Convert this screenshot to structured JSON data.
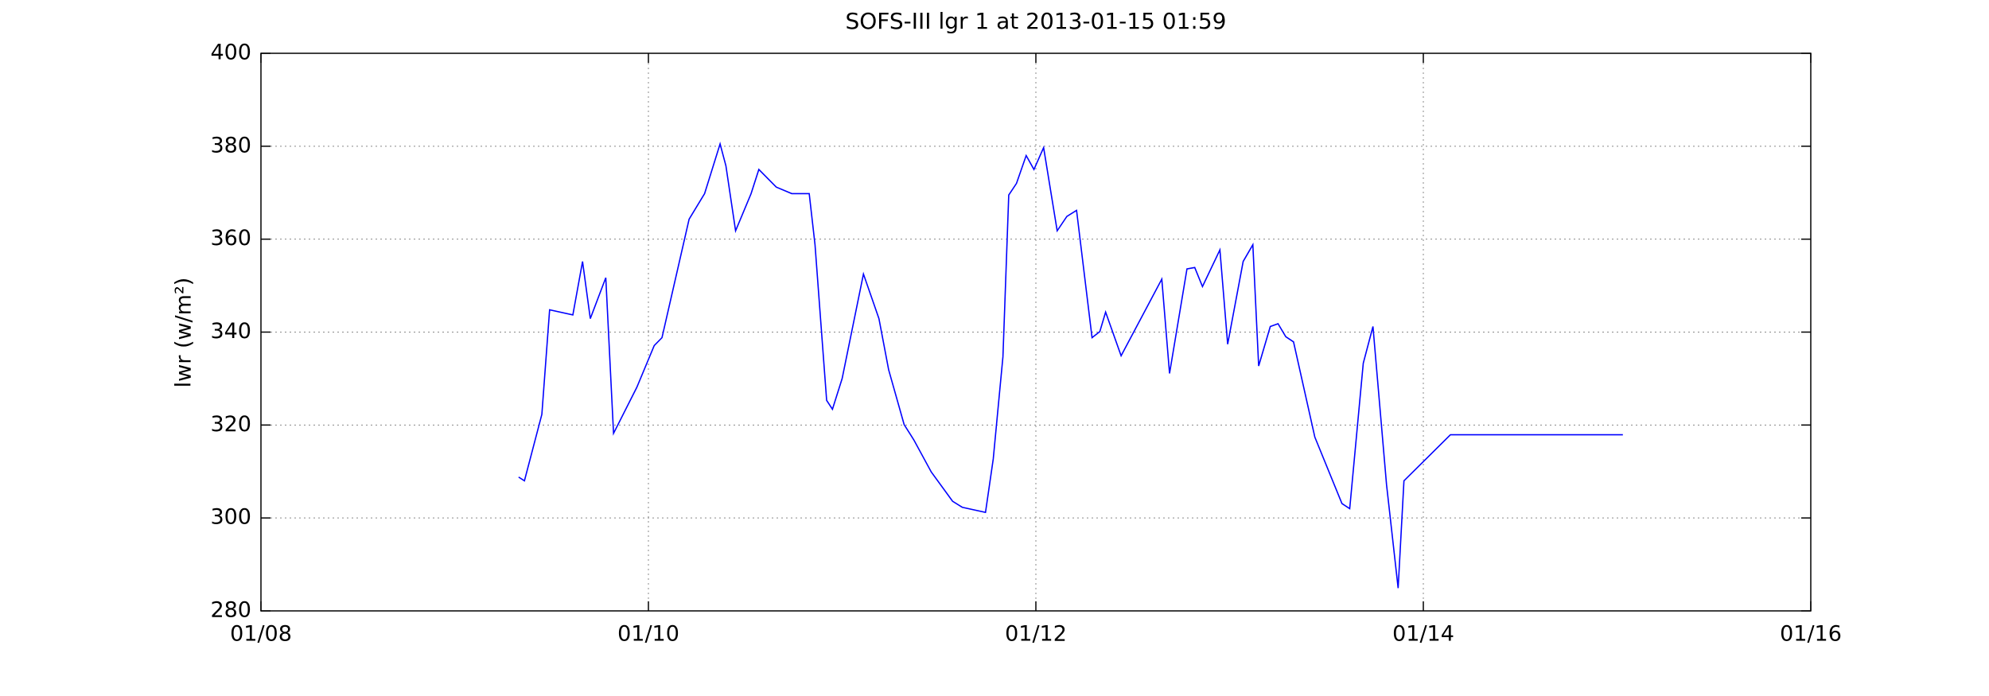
{
  "chart_data": {
    "type": "line",
    "title": "SOFS-III lgr 1 at 2013-01-15 01:59",
    "y_label": "lwr (w/m²)",
    "color": "#0000ff",
    "grid": true,
    "xlim": [
      8,
      16
    ],
    "xticks": [
      {
        "value": 8,
        "label": "01/08"
      },
      {
        "value": 10,
        "label": "01/10"
      },
      {
        "value": 12,
        "label": "01/12"
      },
      {
        "value": 14,
        "label": "01/14"
      },
      {
        "value": 16,
        "label": "01/16"
      }
    ],
    "ylim": [
      280,
      400
    ],
    "yticks": [
      280,
      300,
      320,
      340,
      360,
      380,
      400
    ],
    "x": [
      9.33,
      9.36,
      9.45,
      9.49,
      9.61,
      9.66,
      9.7,
      9.78,
      9.82,
      9.94,
      10.03,
      10.07,
      10.21,
      10.29,
      10.37,
      10.4,
      10.45,
      10.53,
      10.57,
      10.66,
      10.74,
      10.83,
      10.86,
      10.92,
      10.95,
      11.0,
      11.11,
      11.19,
      11.24,
      11.32,
      11.37,
      11.46,
      11.57,
      11.62,
      11.74,
      11.78,
      11.83,
      11.86,
      11.9,
      11.95,
      11.99,
      12.04,
      12.11,
      12.16,
      12.21,
      12.29,
      12.33,
      12.36,
      12.44,
      12.65,
      12.69,
      12.78,
      12.82,
      12.86,
      12.95,
      12.99,
      13.07,
      13.12,
      13.15,
      13.21,
      13.25,
      13.29,
      13.33,
      13.44,
      13.58,
      13.62,
      13.69,
      13.74,
      13.81,
      13.87,
      13.9,
      14.14,
      14.17,
      15.03
    ],
    "values": [
      308.8,
      308.0,
      322.3,
      344.8,
      343.7,
      355.2,
      342.9,
      351.7,
      318.2,
      328.1,
      337.1,
      338.8,
      364.3,
      369.8,
      380.5,
      375.8,
      361.8,
      369.8,
      375.0,
      371.2,
      369.8,
      369.8,
      358.8,
      325.3,
      323.4,
      330.0,
      352.5,
      342.9,
      331.9,
      320.1,
      316.8,
      309.9,
      303.6,
      302.3,
      301.2,
      312.7,
      334.7,
      369.5,
      372.0,
      378.0,
      375.0,
      379.7,
      361.8,
      364.9,
      366.2,
      338.8,
      340.1,
      344.3,
      334.9,
      351.4,
      331.1,
      353.6,
      353.9,
      349.8,
      357.7,
      337.4,
      355.2,
      358.8,
      332.7,
      341.2,
      341.8,
      339.0,
      337.9,
      317.4,
      303.1,
      302.0,
      333.3,
      341.2,
      307.2,
      284.9,
      308.0,
      317.9,
      317.9,
      317.9
    ]
  }
}
